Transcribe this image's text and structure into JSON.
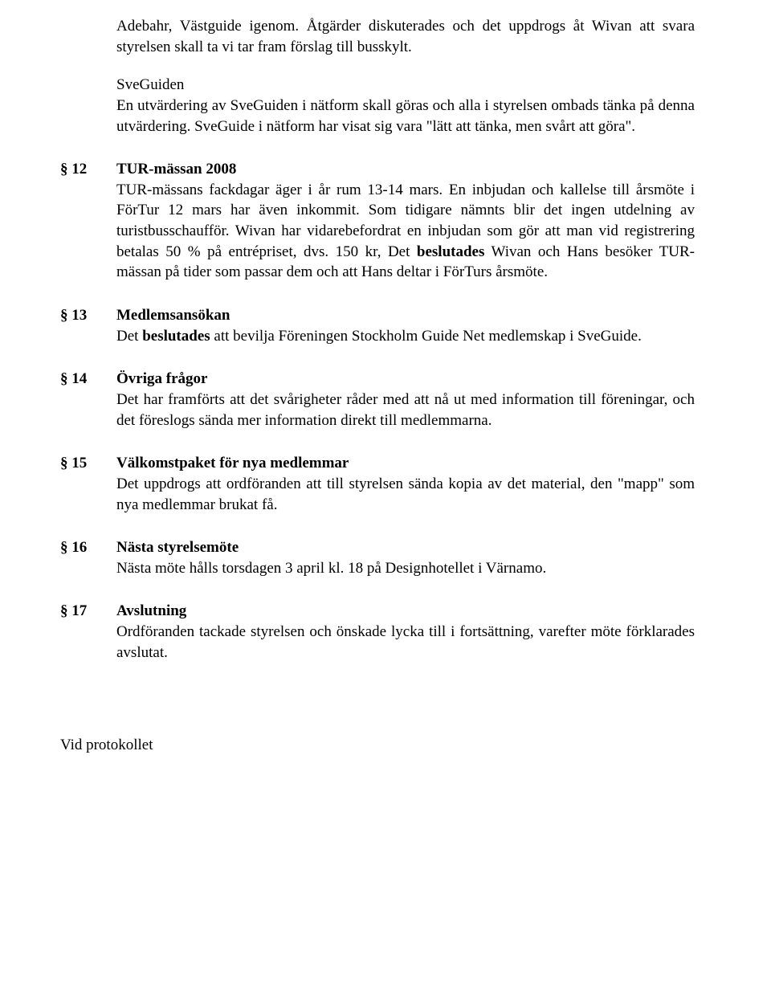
{
  "intro": {
    "p1": "Adebahr, Västguide igenom. Åtgärder diskuterades och det uppdrogs åt Wivan att svara styrelsen skall ta vi tar fram förslag till busskylt.",
    "p2_heading": "SveGuiden",
    "p2_body": "En utvärdering av SveGuiden i nätform skall göras och alla i styrelsen ombads tänka på denna utvärdering. SveGuide i nätform har visat sig vara \"lätt att tänka, men svårt att göra\"."
  },
  "sections": [
    {
      "num": "§ 12",
      "heading": "TUR-mässan 2008",
      "body_pre": "TUR-mässans fackdagar äger i år rum 13-14 mars. En inbjudan och kallelse till årsmöte i FörTur 12 mars har även inkommit. Som tidigare nämnts blir det ingen utdelning av turistbusschaufför. Wivan har vidarebefordrat en inbjudan som gör att man vid registrering betalas 50 % på entrépriset, dvs. 150 kr, Det ",
      "bold": "beslutades",
      "body_post": " Wivan och Hans besöker TUR-mässan på tider som passar dem och att Hans deltar i FörTurs årsmöte."
    },
    {
      "num": "§ 13",
      "heading": "Medlemsansökan",
      "body_pre": "Det ",
      "bold": "beslutades",
      "body_post": " att bevilja Föreningen Stockholm Guide Net medlemskap i SveGuide."
    },
    {
      "num": "§ 14",
      "heading": "Övriga frågor",
      "body_pre": "Det har framförts att det svårigheter råder med att nå ut med information till föreningar, och det föreslogs sända mer information direkt till medlemmarna.",
      "bold": "",
      "body_post": ""
    },
    {
      "num": "§ 15",
      "heading": "Välkomstpaket för nya medlemmar",
      "body_pre": "Det uppdrogs att ordföranden att till styrelsen sända kopia av det material, den \"mapp\" som nya medlemmar brukat få.",
      "bold": "",
      "body_post": ""
    },
    {
      "num": "§ 16",
      "heading": "Nästa styrelsemöte",
      "body_pre": "Nästa möte hålls torsdagen 3 april kl. 18 på Designhotellet i Värnamo.",
      "bold": "",
      "body_post": ""
    },
    {
      "num": "§ 17",
      "heading": "Avslutning",
      "body_pre": "Ordföranden tackade styrelsen och önskade lycka till i fortsättning, varefter möte förklarades avslutat.",
      "bold": "",
      "body_post": ""
    }
  ],
  "footer": "Vid protokollet"
}
